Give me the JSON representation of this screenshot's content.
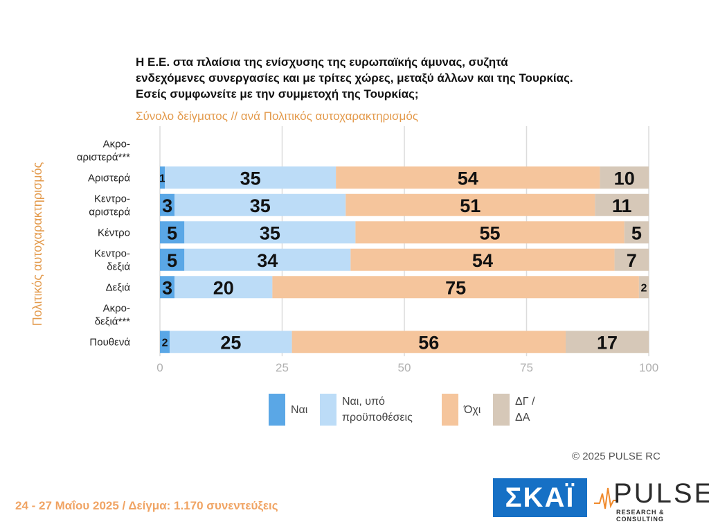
{
  "header": {
    "title": "Η Ε.Ε. στα πλαίσια της ενίσχυσης της ευρωπαϊκής άμυνας, συζητά ενδεχόμενες συνεργασίες και με τρίτες χώρες, μεταξύ άλλων και της Τουρκίας. Εσείς συμφωνείτε με την συμμετοχή της Τουρκίας;",
    "subtitle": "Σύνολο δείγματος // ανά Πολιτικός αυτοχαρακτηρισμός"
  },
  "chart_data": {
    "type": "bar",
    "orientation": "horizontal",
    "stacked": true,
    "ylabel": "Πολιτικός αυτοχαρακτηρισμός",
    "xlabel": "",
    "xlim": [
      0,
      100
    ],
    "xticks": [
      "0",
      "25",
      "50",
      "75",
      "100"
    ],
    "grid": true,
    "categories": [
      [
        "Ακρο-",
        "αριστερά***"
      ],
      [
        "Αριστερά"
      ],
      [
        "Κεντρο-",
        "αριστερά"
      ],
      [
        "Κέντρο"
      ],
      [
        "Κεντρο-",
        "δεξιά"
      ],
      [
        "Δεξιά"
      ],
      [
        "Ακρο-",
        "δεξιά***"
      ],
      [
        "Πουθενά"
      ]
    ],
    "series": [
      {
        "name": "Ναι",
        "color": "#5aa7e6",
        "values": [
          null,
          1,
          3,
          5,
          5,
          3,
          null,
          2
        ]
      },
      {
        "name": "Ναι, υπό προϋποθέσεις",
        "color": "#bcdcf7",
        "values": [
          null,
          35,
          35,
          35,
          34,
          20,
          null,
          25
        ]
      },
      {
        "name": "Όχι",
        "color": "#f5c59c",
        "values": [
          null,
          54,
          51,
          55,
          54,
          75,
          null,
          56
        ]
      },
      {
        "name": "ΔΓ / ΔΑ",
        "color": "#d6c8b8",
        "values": [
          null,
          10,
          11,
          5,
          7,
          2,
          null,
          17
        ]
      }
    ],
    "legend_position": "bottom"
  },
  "legend": {
    "items": [
      {
        "lines": [
          "Ναι"
        ]
      },
      {
        "lines": [
          "Ναι, υπό",
          "προϋποθέσεις"
        ]
      },
      {
        "lines": [
          "Όχι"
        ]
      },
      {
        "lines": [
          "ΔΓ /",
          "ΔΑ"
        ]
      }
    ]
  },
  "footer": {
    "copyright": "©  2025  PULSE RC",
    "note": "24 - 27 Μαΐου 2025  /  Δείγμα:  1.170 συνεντεύξεις",
    "logo_skai": "ΣΚΑΪ",
    "logo_pulse": "PULSE",
    "logo_pulse_tag": "RESEARCH & CONSULTING"
  }
}
